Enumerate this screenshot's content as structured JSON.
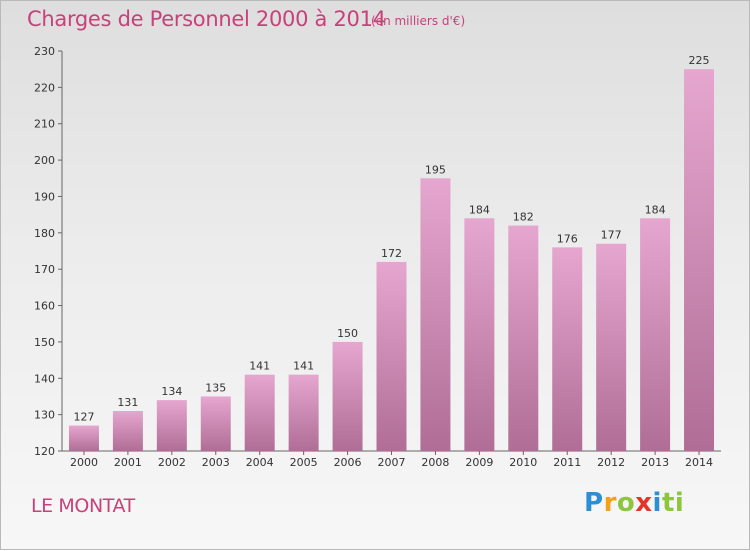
{
  "header": {
    "title": "Charges de Personnel 2000 à 2014",
    "unit": "(en milliers d'€)"
  },
  "footer": {
    "place": "LE MONTAT",
    "logo": [
      "P",
      "r",
      "o",
      "x",
      "i",
      "ti"
    ]
  },
  "colors": {
    "title": "#c8417a",
    "bar_top": "#e5a6cf",
    "bar_bottom": "#b06e96"
  },
  "chart_data": {
    "type": "bar",
    "title": "Charges de Personnel 2000 à 2014",
    "subtitle": "(en milliers d'€)",
    "categories": [
      "2000",
      "2001",
      "2002",
      "2003",
      "2004",
      "2005",
      "2006",
      "2007",
      "2008",
      "2009",
      "2010",
      "2011",
      "2012",
      "2013",
      "2014"
    ],
    "values": [
      127,
      131,
      134,
      135,
      141,
      141,
      150,
      172,
      195,
      184,
      182,
      176,
      177,
      184,
      225
    ],
    "ylim": [
      120,
      230
    ],
    "yticks": [
      120,
      130,
      140,
      150,
      160,
      170,
      180,
      190,
      200,
      210,
      220,
      230
    ],
    "data_labels": true,
    "grid": false
  }
}
